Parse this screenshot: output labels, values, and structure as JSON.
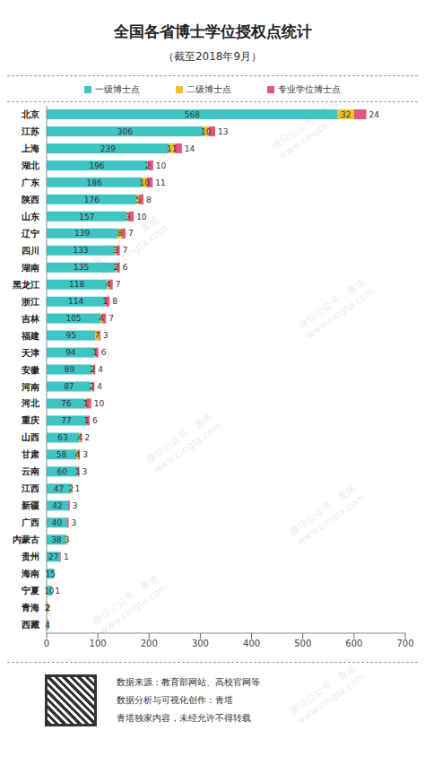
{
  "chart_data": {
    "type": "bar",
    "title": "全国各省博士学位授权点统计",
    "subtitle": "（截至2018年9月）",
    "orientation": "horizontal",
    "stacked": true,
    "data_labels": true,
    "grid": false,
    "legend": "top",
    "categories": [
      "北京",
      "江苏",
      "上海",
      "湖北",
      "广东",
      "陕西",
      "山东",
      "辽宁",
      "四川",
      "湖南",
      "黑龙江",
      "浙江",
      "吉林",
      "福建",
      "天津",
      "安徽",
      "河南",
      "河北",
      "重庆",
      "山西",
      "甘肃",
      "云南",
      "江西",
      "新疆",
      "广西",
      "内蒙古",
      "贵州",
      "海南",
      "宁夏",
      "青海",
      "西藏"
    ],
    "series": [
      {
        "name": "一级博士点",
        "color": "#3fc4c4",
        "values": [
          568,
          306,
          239,
          196,
          186,
          176,
          157,
          139,
          133,
          135,
          118,
          114,
          105,
          95,
          94,
          89,
          87,
          76,
          77,
          63,
          58,
          60,
          47,
          42,
          40,
          38,
          27,
          15,
          10,
          2,
          4
        ]
      },
      {
        "name": "二级博士点",
        "color": "#f4c02c",
        "values": [
          32,
          10,
          11,
          2,
          10,
          5,
          3,
          8,
          3,
          2,
          4,
          1,
          4,
          7,
          1,
          2,
          2,
          1,
          1,
          4,
          4,
          1,
          2,
          0,
          0,
          3,
          0,
          0,
          0,
          2,
          0
        ]
      },
      {
        "name": "专业学位博士点",
        "color": "#e0577b",
        "values": [
          24,
          13,
          14,
          10,
          11,
          8,
          10,
          7,
          7,
          6,
          7,
          8,
          7,
          3,
          6,
          4,
          4,
          10,
          6,
          2,
          3,
          3,
          1,
          3,
          3,
          0,
          1,
          0,
          1,
          0,
          0
        ]
      }
    ],
    "xlim": [
      0,
      700
    ],
    "xticks": [
      0,
      100,
      200,
      300,
      400,
      500,
      600,
      700
    ]
  },
  "footer": [
    "数据来源：教育部网站、高校官网等",
    "数据分析与可视化创作：青塔",
    "青塔独家内容，未经允许不得转载"
  ],
  "watermark": [
    "微信公众号：青塔",
    "www.cingta.com"
  ]
}
